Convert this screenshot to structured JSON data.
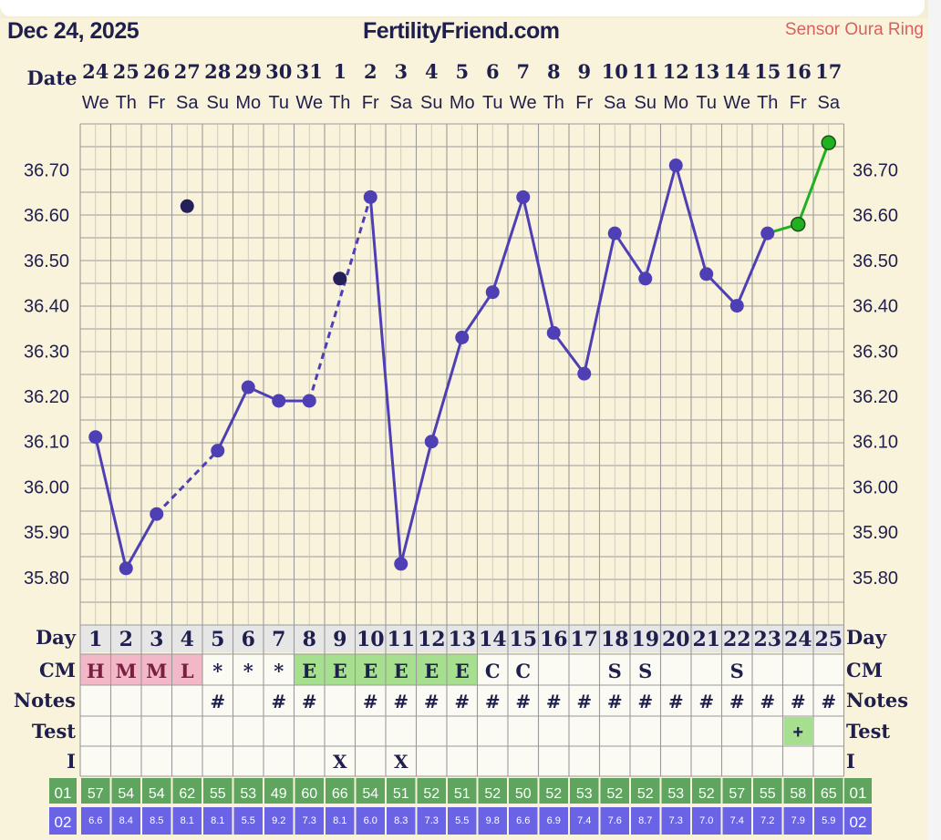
{
  "header": {
    "date": "Dec 24, 2025",
    "site": "FertilityFriend.com",
    "sensor": "Sensor Oura Ring"
  },
  "labels": {
    "date": "Date",
    "day": "Day",
    "cm": "CM",
    "notes": "Notes",
    "test": "Test",
    "i": "I",
    "row01": "01",
    "row02": "02"
  },
  "colors": {
    "line": "#4f3fb5",
    "line_green": "#20b020",
    "grid": "#9a9a9a",
    "cm_pink": "#f3b8c8",
    "cm_green": "#a6e08f",
    "row01_bg": "#5fa45f",
    "row02_bg": "#6b63e6"
  },
  "chart_data": {
    "type": "line",
    "title": "",
    "ylim": [
      35.7,
      36.8
    ],
    "yticks": [
      "36.70",
      "36.60",
      "36.50",
      "36.40",
      "36.30",
      "36.20",
      "36.10",
      "36.00",
      "35.90",
      "35.80"
    ],
    "dates": [
      "24",
      "25",
      "26",
      "27",
      "28",
      "29",
      "30",
      "31",
      "1",
      "2",
      "3",
      "4",
      "5",
      "6",
      "7",
      "8",
      "9",
      "10",
      "11",
      "12",
      "13",
      "14",
      "15",
      "16",
      "17"
    ],
    "weekdays": [
      "We",
      "Th",
      "Fr",
      "Sa",
      "Su",
      "Mo",
      "Tu",
      "We",
      "Th",
      "Fr",
      "Sa",
      "Su",
      "Mo",
      "Tu",
      "We",
      "Th",
      "Fr",
      "Sa",
      "Su",
      "Mo",
      "Tu",
      "We",
      "Th",
      "Fr",
      "Sa"
    ],
    "cycle_days": [
      "1",
      "2",
      "3",
      "4",
      "5",
      "6",
      "7",
      "8",
      "9",
      "10",
      "11",
      "12",
      "13",
      "14",
      "15",
      "16",
      "17",
      "18",
      "19",
      "20",
      "21",
      "22",
      "23",
      "24",
      "25"
    ],
    "temperatures": [
      36.11,
      35.82,
      35.94,
      null,
      36.08,
      36.22,
      36.19,
      36.19,
      null,
      36.64,
      35.83,
      36.1,
      36.33,
      36.43,
      36.64,
      36.34,
      36.25,
      36.56,
      36.46,
      36.71,
      36.47,
      36.4,
      36.56,
      36.58,
      36.76
    ],
    "discarded_temperatures": [
      {
        "day": 4,
        "value": 36.62
      },
      {
        "day": 9,
        "value": 36.46
      }
    ],
    "cm": [
      "H",
      "M",
      "M",
      "L",
      "*",
      "*",
      "*",
      "E",
      "E",
      "E",
      "E",
      "E",
      "E",
      "C",
      "C",
      "",
      "",
      "S",
      "S",
      "",
      "",
      "S",
      "",
      "",
      ""
    ],
    "notes": [
      "",
      "",
      "",
      "",
      "#",
      "",
      "#",
      "#",
      "",
      "#",
      "#",
      "#",
      "#",
      "#",
      "#",
      "#",
      "#",
      "#",
      "#",
      "#",
      "#",
      "#",
      "#",
      "#",
      "#"
    ],
    "test": [
      "",
      "",
      "",
      "",
      "",
      "",
      "",
      "",
      "",
      "",
      "",
      "",
      "",
      "",
      "",
      "",
      "",
      "",
      "",
      "",
      "",
      "",
      "",
      "+",
      ""
    ],
    "intercourse": [
      "",
      "",
      "",
      "",
      "",
      "",
      "",
      "",
      "X",
      "",
      "X",
      "",
      "",
      "",
      "",
      "",
      "",
      "",
      "",
      "",
      "",
      "",
      "",
      "",
      ""
    ],
    "row01": [
      "57",
      "54",
      "54",
      "62",
      "55",
      "53",
      "49",
      "60",
      "66",
      "54",
      "51",
      "52",
      "51",
      "52",
      "50",
      "52",
      "53",
      "52",
      "52",
      "53",
      "52",
      "57",
      "55",
      "58",
      "65"
    ],
    "row02": [
      "6.6",
      "8.4",
      "8.5",
      "8.1",
      "8.1",
      "5.5",
      "9.2",
      "7.3",
      "8.1",
      "6.0",
      "8.3",
      "7.3",
      "5.5",
      "9.8",
      "6.6",
      "6.9",
      "7.4",
      "7.6",
      "8.7",
      "7.3",
      "7.0",
      "7.4",
      "7.2",
      "7.9",
      "5.9"
    ]
  }
}
